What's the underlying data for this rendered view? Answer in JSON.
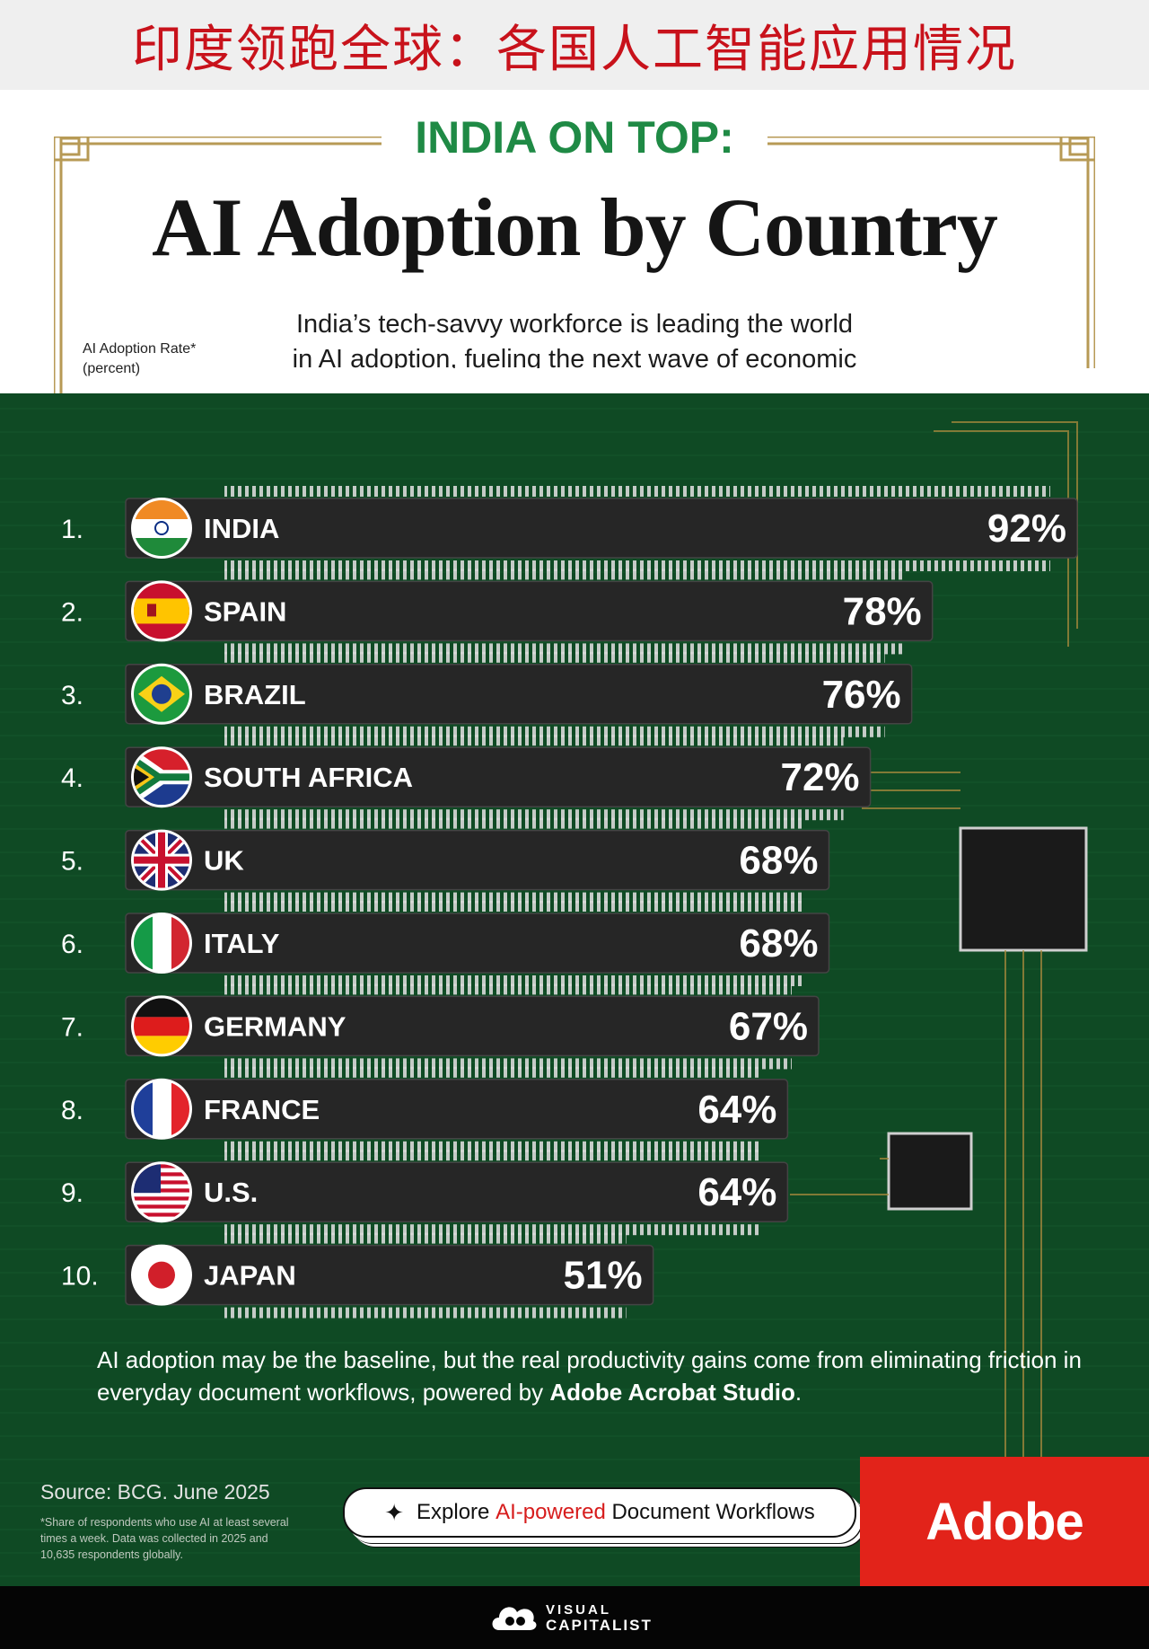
{
  "banner": {
    "text": "印度领跑全球：各国人工智能应用情况"
  },
  "header": {
    "kicker": "INDIA ON TOP:",
    "title": "AI Adoption by Country",
    "subtitle": "India’s tech-savvy workforce is leading the world in AI adoption, fueling the next wave of economic growth.",
    "axis_label_line1": "AI Adoption Rate*",
    "axis_label_line2": "(percent)"
  },
  "chart_data": {
    "type": "bar",
    "orientation": "horizontal",
    "title": "AI Adoption by Country",
    "ylabel": "AI Adoption Rate* (percent)",
    "categories": [
      "INDIA",
      "SPAIN",
      "BRAZIL",
      "SOUTH AFRICA",
      "UK",
      "ITALY",
      "GERMANY",
      "FRANCE",
      "U.S.",
      "JAPAN"
    ],
    "ranks": [
      "1.",
      "2.",
      "3.",
      "4.",
      "5.",
      "6.",
      "7.",
      "8.",
      "9.",
      "10."
    ],
    "values": [
      92,
      78,
      76,
      72,
      68,
      68,
      67,
      64,
      64,
      51
    ],
    "value_labels": [
      "92%",
      "78%",
      "76%",
      "72%",
      "68%",
      "68%",
      "67%",
      "64%",
      "64%",
      "51%"
    ],
    "flag_icons": [
      "india-flag-icon",
      "spain-flag-icon",
      "brazil-flag-icon",
      "south-africa-flag-icon",
      "uk-flag-icon",
      "italy-flag-icon",
      "germany-flag-icon",
      "france-flag-icon",
      "us-flag-icon",
      "japan-flag-icon"
    ],
    "xlim": [
      0,
      92
    ],
    "bar_color": "#262626",
    "background_color": "#0f4a24"
  },
  "note": {
    "text": "AI adoption may be the baseline, but the real productivity gains come from eliminating friction in everyday document workflows, powered by",
    "brand": "Adobe Acrobat Studio",
    "end": "."
  },
  "source": "Source: BCG. June 2025",
  "footnote": "*Share of respondents who use AI at least several times a week. Data was collected in 2025 and 10,635 respondents globally.",
  "cta": {
    "pre": "Explore",
    "highlight": "AI-powered",
    "post": "Document Workflows"
  },
  "adobe_logo": "Adobe",
  "publisher": {
    "line1": "VISUAL",
    "line2": "CAPITALIST"
  },
  "colors": {
    "accent_green": "#1f8a45",
    "banner_red": "#c8121b",
    "adobe_red": "#e2231a",
    "board_green": "#0f4a24"
  }
}
